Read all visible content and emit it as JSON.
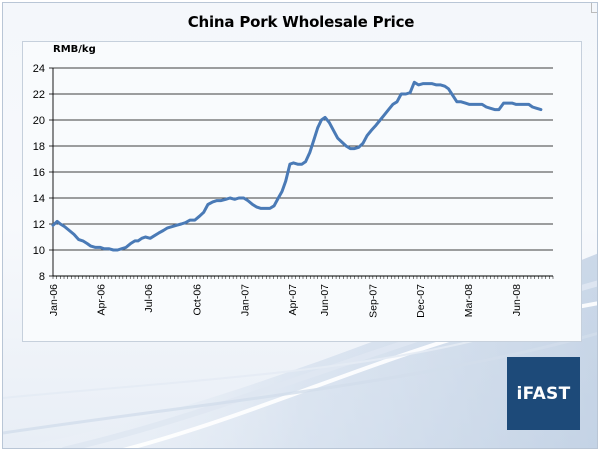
{
  "chart_data": {
    "type": "line",
    "title": "China Pork Wholesale Price",
    "ylabel": "RMB/kg",
    "ylim": [
      8,
      24
    ],
    "yticks": [
      8,
      10,
      12,
      14,
      16,
      18,
      20,
      22,
      24
    ],
    "xticks": [
      "Jan-06",
      "Apr-06",
      "Jul-06",
      "Oct-06",
      "Jan-07",
      "Apr-07",
      "Jun-07",
      "Sep-07",
      "Dec-07",
      "Mar-08",
      "Jun-08"
    ],
    "grid": true,
    "legend": "none",
    "series": [
      {
        "color": "#4a7ab6",
        "x": [
          "2006-01-01",
          "2006-01-09",
          "2006-01-15",
          "2006-01-23",
          "2006-02-01",
          "2006-02-10",
          "2006-02-19",
          "2006-02-27",
          "2006-03-07",
          "2006-03-14",
          "2006-03-23",
          "2006-04-01",
          "2006-04-08",
          "2006-04-17",
          "2006-04-26",
          "2006-05-04",
          "2006-05-12",
          "2006-05-20",
          "2006-05-29",
          "2006-06-06",
          "2006-06-12",
          "2006-06-19",
          "2006-06-26",
          "2006-07-05",
          "2006-07-13",
          "2006-07-21",
          "2006-07-30",
          "2006-08-07",
          "2006-08-16",
          "2006-08-24",
          "2006-09-02",
          "2006-09-10",
          "2006-09-19",
          "2006-09-28",
          "2006-10-07",
          "2006-10-15",
          "2006-10-23",
          "2006-11-01",
          "2006-11-09",
          "2006-11-17",
          "2006-11-26",
          "2006-12-04",
          "2006-12-13",
          "2006-12-21",
          "2006-12-30",
          "2007-01-07",
          "2007-01-16",
          "2007-01-24",
          "2007-02-01",
          "2007-02-10",
          "2007-02-18",
          "2007-02-26",
          "2007-03-06",
          "2007-03-13",
          "2007-03-20",
          "2007-03-28",
          "2007-04-04",
          "2007-04-12",
          "2007-04-20",
          "2007-04-27",
          "2007-05-05",
          "2007-05-13",
          "2007-05-20",
          "2007-05-27",
          "2007-06-03",
          "2007-06-11",
          "2007-06-19",
          "2007-06-27",
          "2007-07-05",
          "2007-07-13",
          "2007-07-21",
          "2007-07-29",
          "2007-08-06",
          "2007-08-14",
          "2007-08-22",
          "2007-08-30",
          "2007-09-08",
          "2007-09-16",
          "2007-09-24",
          "2007-10-02",
          "2007-10-10",
          "2007-10-18",
          "2007-10-26",
          "2007-11-04",
          "2007-11-12",
          "2007-11-20",
          "2007-11-28",
          "2007-12-07",
          "2007-12-15",
          "2007-12-23",
          "2008-01-01",
          "2008-01-09",
          "2008-01-17",
          "2008-01-24",
          "2008-02-01",
          "2008-02-09",
          "2008-02-17",
          "2008-02-25",
          "2008-03-04",
          "2008-03-12",
          "2008-03-20",
          "2008-03-28",
          "2008-04-05",
          "2008-04-13",
          "2008-04-21",
          "2008-04-29",
          "2008-05-08",
          "2008-05-16",
          "2008-05-24",
          "2008-06-01",
          "2008-06-09",
          "2008-06-17",
          "2008-06-25",
          "2008-07-02",
          "2008-07-10",
          "2008-07-18"
        ],
        "values": [
          11.9,
          12.2,
          12.0,
          11.8,
          11.5,
          11.2,
          10.8,
          10.7,
          10.5,
          10.3,
          10.2,
          10.2,
          10.1,
          10.1,
          10.0,
          10.0,
          10.1,
          10.2,
          10.5,
          10.7,
          10.7,
          10.9,
          11.0,
          10.9,
          11.1,
          11.3,
          11.5,
          11.7,
          11.8,
          11.9,
          12.0,
          12.1,
          12.3,
          12.3,
          12.6,
          12.9,
          13.5,
          13.7,
          13.8,
          13.8,
          13.9,
          14.0,
          13.9,
          14.0,
          14.0,
          13.8,
          13.5,
          13.3,
          13.2,
          13.2,
          13.2,
          13.4,
          14.0,
          14.5,
          15.3,
          16.6,
          16.7,
          16.6,
          16.6,
          16.8,
          17.5,
          18.5,
          19.4,
          20.0,
          20.2,
          19.8,
          19.2,
          18.6,
          18.3,
          18.0,
          17.8,
          17.8,
          17.9,
          18.2,
          18.8,
          19.2,
          19.6,
          20.0,
          20.4,
          20.8,
          21.2,
          21.4,
          22.0,
          22.0,
          22.1,
          22.9,
          22.7,
          22.8,
          22.8,
          22.8,
          22.7,
          22.7,
          22.6,
          22.4,
          21.9,
          21.4,
          21.4,
          21.3,
          21.2,
          21.2,
          21.2,
          21.2,
          21.0,
          20.9,
          20.8,
          20.8,
          21.3,
          21.3,
          21.3,
          21.2,
          21.2,
          21.2,
          21.2,
          21.0,
          20.9,
          20.8
        ]
      }
    ]
  },
  "branding": {
    "logo_text": "iFAST"
  }
}
